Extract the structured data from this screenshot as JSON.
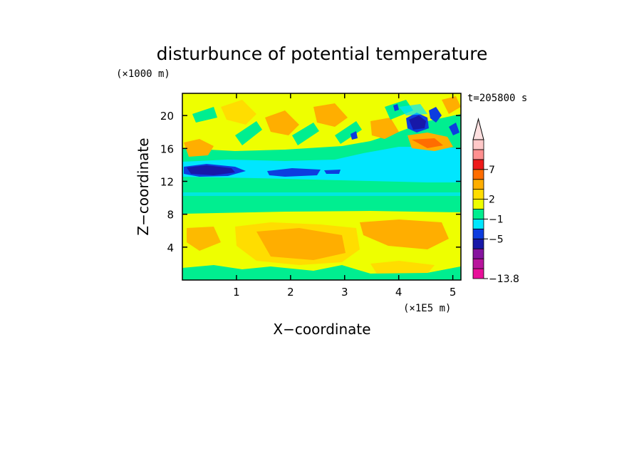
{
  "chart_data": {
    "type": "heatmap",
    "title": "disturbunce of potential temperature",
    "xlabel": "X−coordinate",
    "ylabel": "Z−coordinate",
    "x_unit": "(×1E5 m)",
    "y_unit": "(×1000 m)",
    "time_label": "t=205800 s",
    "xlim": [
      0,
      5.15
    ],
    "ylim": [
      0,
      22.7
    ],
    "x_ticks": [
      1,
      2,
      3,
      4,
      5
    ],
    "y_ticks": [
      4,
      8,
      12,
      16,
      20
    ],
    "colorbar": {
      "levels": [
        -13.8,
        -5,
        -1,
        2,
        7
      ],
      "colors": [
        "#e8109a",
        "#b8149c",
        "#86149f",
        "#1818a8",
        "#0d3ddf",
        "#00e6ff",
        "#00ee90",
        "#eeff00",
        "#ffdd00",
        "#ffae00",
        "#ff6d00",
        "#ee1a1a",
        "#ff8f8f",
        "#ffc8c8"
      ],
      "extend_max": true
    },
    "field_description": "Layered contour field: green/yellow background; cyan band near z=10-14 km; dark-blue negative cores near z=13-14 km (x=0.2-2.2) and aloft at x=4-4.8 (z=18-21 km); orange positive patches near z=2-7 km and z=15-20 km."
  }
}
